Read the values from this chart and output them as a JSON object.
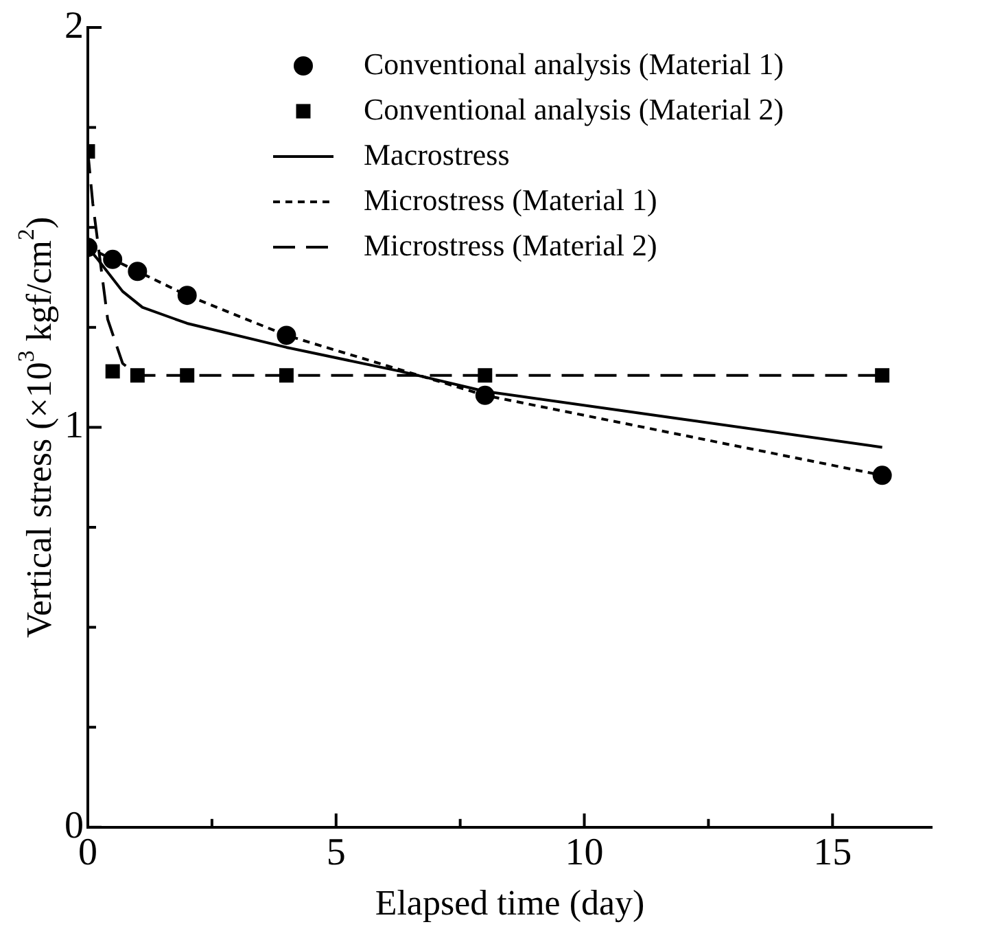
{
  "chart_data": {
    "type": "line",
    "xlabel": "Elapsed time (day)",
    "ylabel": "Vertical stress (×10$^{3}$ kgf/cm$^{2}$)",
    "xlim": [
      0,
      17
    ],
    "xticks": [
      0,
      {
        "value": 2.5,
        "label": null
      },
      5,
      {
        "value": 7.5,
        "label": null
      },
      10,
      {
        "value": 12.5,
        "label": null
      },
      15
    ],
    "ylim": [
      0,
      2
    ],
    "yticks": [
      0,
      {
        "value": 0.25,
        "label": null
      },
      {
        "value": 0.5,
        "label": null
      },
      {
        "value": 0.75,
        "label": null
      },
      1,
      {
        "value": 1.25,
        "label": null
      },
      {
        "value": 1.5,
        "label": null
      },
      {
        "value": 1.75,
        "label": null
      },
      2
    ],
    "grid": false,
    "legend": "top right",
    "series": [
      {
        "name": "Conventional analysis (Material 1)",
        "type": "scatter",
        "marker": "circle",
        "color": "#000000",
        "x": [
          0,
          0.5,
          1,
          2,
          4,
          8,
          16
        ],
        "values": [
          1.45,
          1.42,
          1.39,
          1.33,
          1.23,
          1.08,
          0.88
        ]
      },
      {
        "name": "Conventional analysis (Material 2)",
        "type": "scatter",
        "marker": "square",
        "color": "#000000",
        "x": [
          0,
          0.5,
          1,
          2,
          4,
          8,
          16
        ],
        "values": [
          1.69,
          1.14,
          1.13,
          1.13,
          1.13,
          1.13,
          1.13
        ]
      },
      {
        "name": "Macrostress",
        "type": "line",
        "marker": "none",
        "line_style": "solid",
        "color": "#000000",
        "x": [
          0,
          0.2,
          0.7,
          1.1,
          2,
          4,
          6.3,
          8,
          12,
          16
        ],
        "values": [
          1.45,
          1.42,
          1.34,
          1.3,
          1.26,
          1.2,
          1.14,
          1.09,
          1.02,
          0.95
        ]
      },
      {
        "name": "Microstress (Material 1)",
        "type": "line",
        "marker": "none",
        "line_style": "dotted",
        "color": "#000000",
        "x": [
          0,
          0.5,
          1,
          2,
          4,
          8,
          16
        ],
        "values": [
          1.45,
          1.42,
          1.39,
          1.33,
          1.23,
          1.08,
          0.88
        ]
      },
      {
        "name": "Microstress (Material 2)",
        "type": "line",
        "marker": "none",
        "line_style": "dashed",
        "color": "#000000",
        "x": [
          0,
          0.1,
          0.4,
          0.7,
          1,
          2,
          4,
          8,
          16
        ],
        "values": [
          1.69,
          1.56,
          1.27,
          1.16,
          1.13,
          1.13,
          1.13,
          1.13,
          1.13
        ]
      }
    ]
  }
}
